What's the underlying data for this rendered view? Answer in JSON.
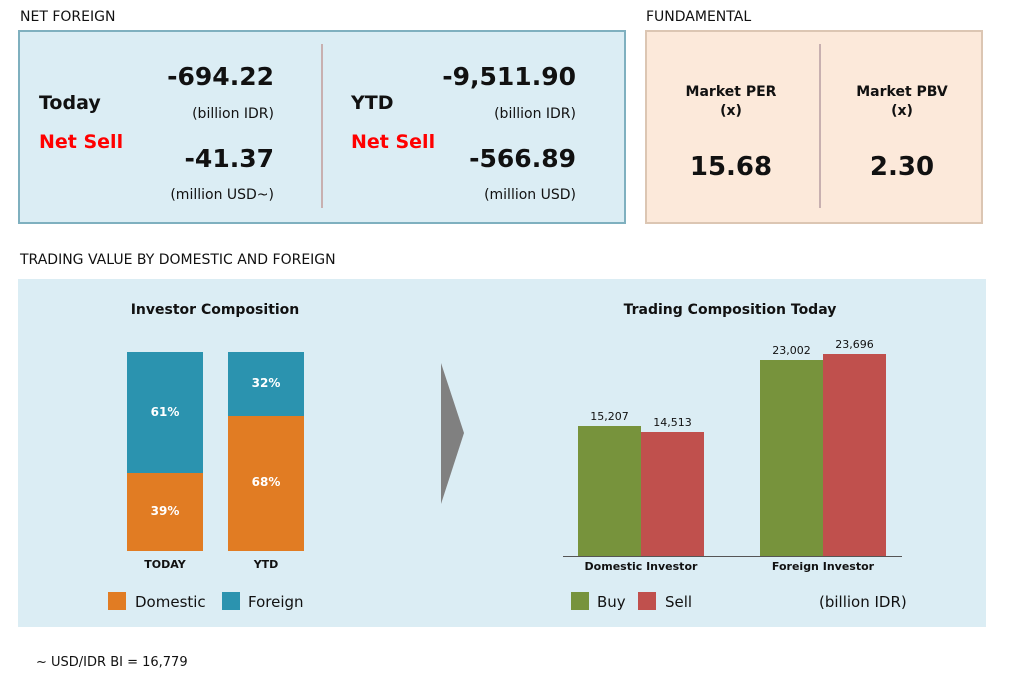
{
  "net_foreign": {
    "title": "NET FOREIGN",
    "today": {
      "label": "Today",
      "status": "Net Sell",
      "idr": "-694.22",
      "idr_unit": "(billion IDR)",
      "usd": "-41.37",
      "usd_unit": "(million USD~)"
    },
    "ytd": {
      "label": "YTD",
      "status": "Net Sell",
      "idr": "-9,511.90",
      "idr_unit": "(billion IDR)",
      "usd": "-566.89",
      "usd_unit": "(million USD)"
    }
  },
  "fundamental": {
    "title": "FUNDAMENTAL",
    "per": {
      "label": "Market PER",
      "unit": "(x)",
      "value": "15.68"
    },
    "pbv": {
      "label": "Market PBV",
      "unit": "(x)",
      "value": "2.30"
    }
  },
  "section_title": "TRADING VALUE BY DOMESTIC AND FOREIGN",
  "footnote": "~ USD/IDR BI = 16,779",
  "colors": {
    "domestic": "#e17c23",
    "foreign": "#2b93af",
    "buy": "#77933c",
    "sell": "#c0504d"
  },
  "chart_data": [
    {
      "type": "bar",
      "stacked": true,
      "title": "Investor Composition",
      "categories": [
        "TODAY",
        "YTD"
      ],
      "series": [
        {
          "name": "Domestic",
          "values": [
            39,
            68
          ],
          "labels": [
            "39%",
            "68%"
          ]
        },
        {
          "name": "Foreign",
          "values": [
            61,
            32
          ],
          "labels": [
            "61%",
            "32%"
          ]
        }
      ],
      "ylim": [
        0,
        100
      ],
      "legend": "bottom",
      "legend_labels": [
        "Domestic",
        "Foreign"
      ]
    },
    {
      "type": "bar",
      "title": "Trading Composition Today",
      "categories": [
        "Domestic Investor",
        "Foreign Investor"
      ],
      "series": [
        {
          "name": "Buy",
          "values": [
            15207,
            23002
          ],
          "labels": [
            "15,207",
            "23,002"
          ]
        },
        {
          "name": "Sell",
          "values": [
            14513,
            23696
          ],
          "labels": [
            "14,513",
            "23,696"
          ]
        }
      ],
      "ylim": [
        0,
        23696
      ],
      "unit": "(billion IDR)",
      "legend": "bottom",
      "legend_labels": [
        "Buy",
        "Sell"
      ]
    }
  ]
}
